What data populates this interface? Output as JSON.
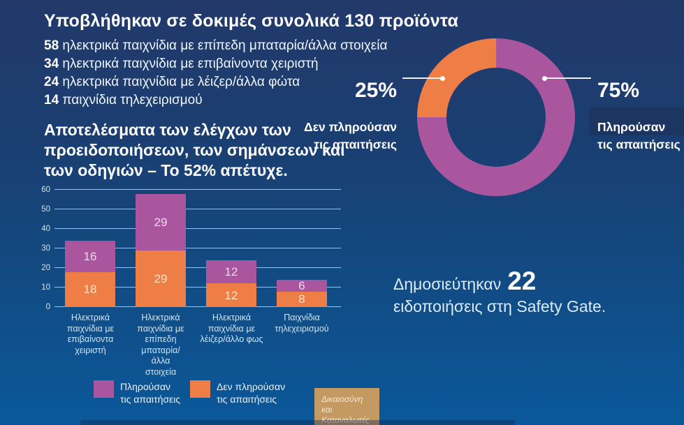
{
  "header": {
    "title": "Υποβλήθηκαν σε δοκιμές συνολικά 130 προϊόντα"
  },
  "product_list": {
    "items": [
      {
        "count": "58",
        "label": "ηλεκτρικά παιχνίδια με επίπεδη μπαταρία/άλλα στοιχεία"
      },
      {
        "count": "34",
        "label": "ηλεκτρικά παιχνίδια με επιβαίνοντα χειριστή"
      },
      {
        "count": "24",
        "label": "ηλεκτρικά παιχνίδια με λέιζερ/άλλα φώτα"
      },
      {
        "count": "14",
        "label": "παιχνίδια τηλεχειρισμού"
      }
    ]
  },
  "results_heading": "Αποτελέσματα των ελέγχων των προειδοποιήσεων, των σημάνσεων και των οδηγιών – Το 52% απέτυχε.",
  "donut_labels": {
    "left_pct": "25%",
    "left_sub": "Δεν πληρούσαν\nτις απαιτήσεις",
    "right_pct": "75%",
    "right_sub": "Πληρούσαν\nτις απαιτήσεις"
  },
  "legend": {
    "met": "Πληρούσαν\nτις απαιτήσεις",
    "not_met": "Δεν πληρούσαν\nτις απαιτήσεις"
  },
  "notice": {
    "prefix": "Δημοσιεύτηκαν",
    "count": "22",
    "suffix": "ειδοποιήσεις στη Safety Gate."
  },
  "badge": "Δικαιοσύνη και\nΚαταναλωτές",
  "colors": {
    "met_purple": "#a9569f",
    "not_met_orange": "#ee7e45",
    "background_top": "#22396a",
    "background_bottom": "#0a589a",
    "badge_tan": "#c49a62"
  },
  "chart_data": [
    {
      "type": "pie",
      "donut": true,
      "labels": [
        "Πληρούσαν τις απαιτήσεις",
        "Δεν πληρούσαν τις απαιτήσεις"
      ],
      "values": [
        75,
        25
      ],
      "unit": "%",
      "colors": [
        "#a9569f",
        "#ee7e45"
      ],
      "start_angle_deg": 0,
      "direction": "clockwise",
      "note": "purple 75% starts at 12 o'clock clockwise; orange 25% fills top-left quadrant"
    },
    {
      "type": "bar",
      "stacked": true,
      "categories": [
        "Ηλεκτρικά παιχνίδια με επιβαίνοντα χειριστή",
        "Ηλεκτρικά παιχνίδια με επίπεδη μπαταρία/ άλλα στοιχεία",
        "Ηλεκτρικά παιχνίδια με λέιζερ/άλλο φως",
        "Παιχνίδια τηλεχειρισμού"
      ],
      "series": [
        {
          "name": "Δεν πληρούσαν τις απαιτήσεις",
          "color": "#ee7e45",
          "values": [
            18,
            29,
            12,
            8
          ]
        },
        {
          "name": "Πληρούσαν τις απαιτήσεις",
          "color": "#a9569f",
          "values": [
            16,
            29,
            12,
            6
          ]
        }
      ],
      "totals": [
        34,
        58,
        24,
        14
      ],
      "ylim": [
        0,
        60
      ],
      "ytick_step": 10,
      "grid": true,
      "legend_position": "bottom"
    }
  ]
}
